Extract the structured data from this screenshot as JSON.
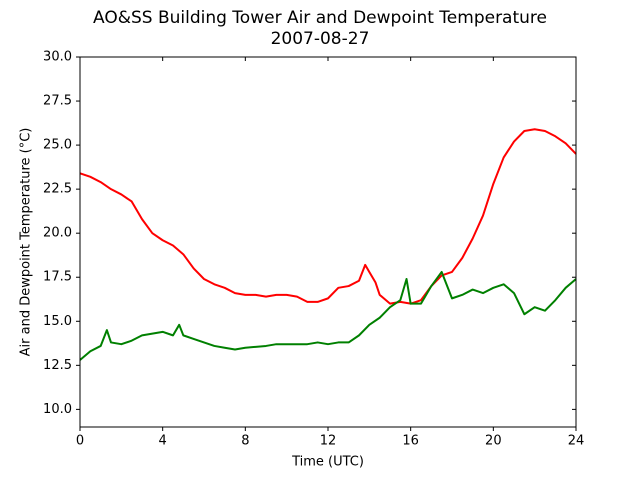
{
  "chart_data": {
    "type": "line",
    "title": "AO&SS Building Tower Air and Dewpoint Temperature",
    "subtitle": "2007-08-27",
    "xlabel": "Time (UTC)",
    "ylabel": "Air and Dewpoint Temperature (°C)",
    "xlim": [
      0,
      24
    ],
    "xticks": [
      0,
      4,
      8,
      12,
      16,
      20,
      24
    ],
    "ylim": [
      9,
      30
    ],
    "yticks": [
      {
        "value": 10,
        "label": "10.0"
      },
      12.5,
      {
        "value": 15,
        "label": "15.0"
      },
      17.5,
      {
        "value": 20,
        "label": "20.0"
      },
      22.5,
      {
        "value": 25,
        "label": "25.0"
      },
      27.5,
      {
        "value": 30,
        "label": "30.0"
      }
    ],
    "grid": false,
    "series": [
      {
        "color": "#ff0000",
        "x": [
          0,
          0.5,
          1,
          1.5,
          2,
          2.5,
          3,
          3.5,
          4,
          4.5,
          5,
          5.5,
          6,
          6.5,
          7,
          7.5,
          8,
          8.5,
          9,
          9.5,
          10,
          10.5,
          11,
          11.5,
          12,
          12.5,
          13,
          13.5,
          13.8,
          14,
          14.3,
          14.5,
          15,
          15.5,
          16,
          16.5,
          17,
          17.5,
          18,
          18.5,
          19,
          19.5,
          20,
          20.5,
          21,
          21.5,
          22,
          22.5,
          23,
          23.5,
          24
        ],
        "values": [
          23.4,
          23.2,
          22.9,
          22.5,
          22.2,
          21.8,
          20.8,
          20.0,
          19.6,
          19.3,
          18.8,
          18.0,
          17.4,
          17.1,
          16.9,
          16.6,
          16.5,
          16.5,
          16.4,
          16.5,
          16.5,
          16.4,
          16.1,
          16.1,
          16.3,
          16.9,
          17.0,
          17.3,
          18.2,
          17.8,
          17.2,
          16.5,
          16.0,
          16.1,
          16.0,
          16.2,
          17.0,
          17.6,
          17.8,
          18.6,
          19.7,
          21.0,
          22.8,
          24.3,
          25.2,
          25.8,
          25.9,
          25.8,
          25.5,
          25.1,
          24.5
        ]
      },
      {
        "color": "#008000",
        "x": [
          0,
          0.5,
          1,
          1.3,
          1.5,
          2,
          2.5,
          3,
          3.5,
          4,
          4.5,
          4.8,
          5,
          5.5,
          6,
          6.5,
          7,
          7.5,
          8,
          8.5,
          9,
          9.5,
          10,
          10.5,
          11,
          11.5,
          12,
          12.5,
          13,
          13.5,
          14,
          14.5,
          15,
          15.5,
          15.8,
          16,
          16.5,
          17,
          17.5,
          18,
          18.5,
          19,
          19.5,
          20,
          20.5,
          21,
          21.5,
          22,
          22.5,
          23,
          23.5,
          24
        ],
        "values": [
          12.8,
          13.3,
          13.6,
          14.5,
          13.8,
          13.7,
          13.9,
          14.2,
          14.3,
          14.4,
          14.2,
          14.8,
          14.2,
          14.0,
          13.8,
          13.6,
          13.5,
          13.4,
          13.5,
          13.55,
          13.6,
          13.7,
          13.7,
          13.7,
          13.7,
          13.8,
          13.7,
          13.8,
          13.8,
          14.2,
          14.8,
          15.2,
          15.8,
          16.2,
          17.4,
          16.0,
          16.0,
          17.0,
          17.8,
          16.3,
          16.5,
          16.8,
          16.6,
          16.9,
          17.1,
          16.6,
          15.4,
          15.8,
          15.6,
          16.2,
          16.9,
          17.4
        ]
      }
    ]
  }
}
